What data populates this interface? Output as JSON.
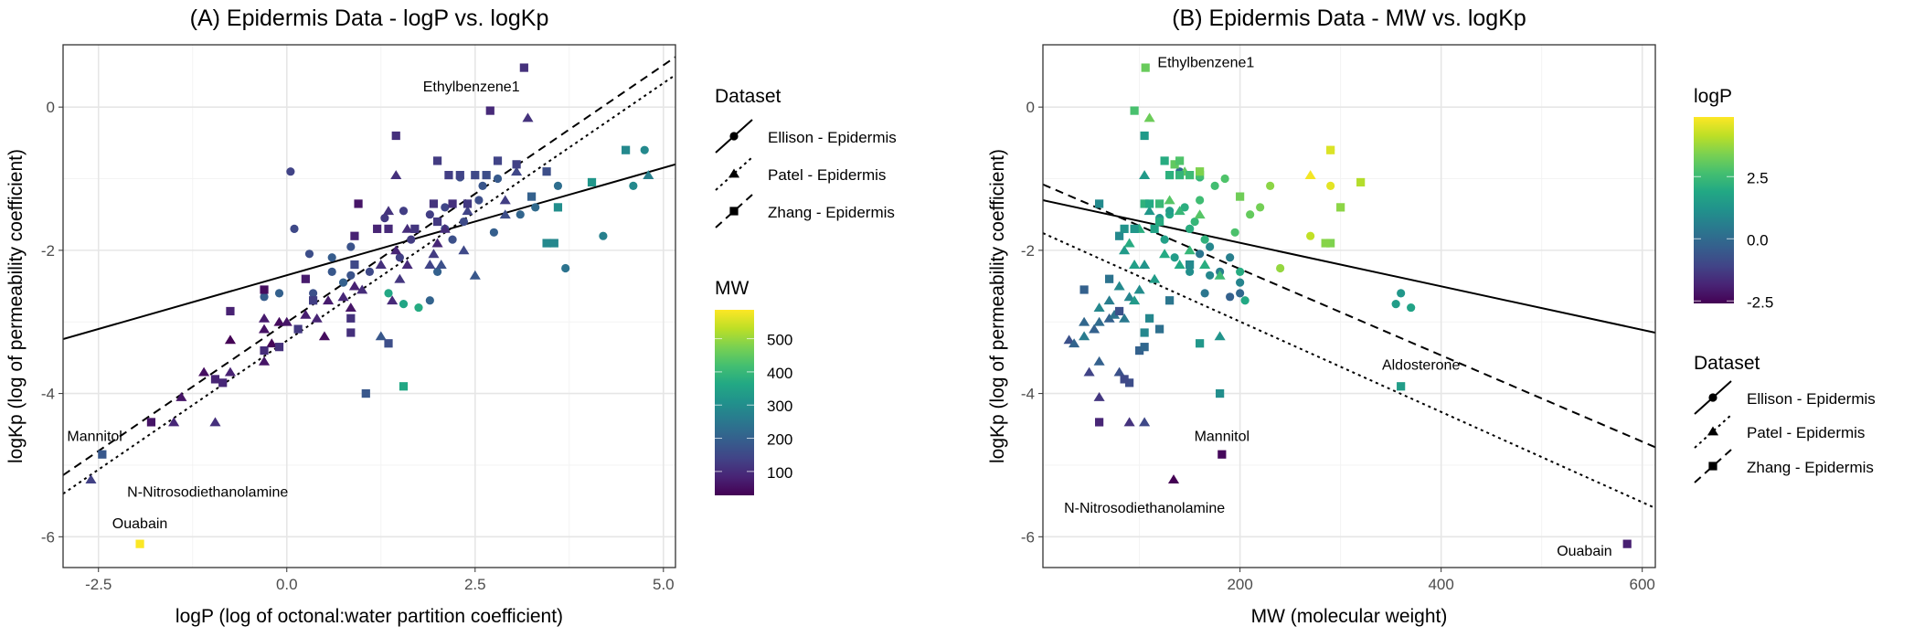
{
  "chart_data": {
    "type": "scatter",
    "datasets": [
      {
        "name": "Ellison - Epidermis",
        "shape": "circle",
        "line": "solid"
      },
      {
        "name": "Patel - Epidermis",
        "shape": "triangle",
        "line": "dotted"
      },
      {
        "name": "Zhang - Epidermis",
        "shape": "square",
        "line": "dashed"
      }
    ],
    "point_fields": [
      "logP",
      "MW",
      "logKp"
    ],
    "points": {
      "Ellison - Epidermis": [
        [
          0.05,
          140,
          -0.9
        ],
        [
          0.1,
          150,
          -1.7
        ],
        [
          0.3,
          160,
          -2.05
        ],
        [
          0.6,
          190,
          -2.1
        ],
        [
          0.85,
          170,
          -1.95
        ],
        [
          1.3,
          120,
          -1.55
        ],
        [
          1.9,
          130,
          -1.5
        ],
        [
          2.1,
          145,
          -1.4
        ],
        [
          2.3,
          160,
          -0.98
        ],
        [
          0.75,
          200,
          -2.45
        ],
        [
          1.75,
          370,
          -2.8
        ],
        [
          1.35,
          360,
          -2.6
        ],
        [
          -0.3,
          190,
          -2.65
        ],
        [
          -0.1,
          200,
          -2.6
        ],
        [
          0.85,
          170,
          -2.35
        ],
        [
          1.5,
          135,
          -2.1
        ],
        [
          2.1,
          150,
          -1.7
        ],
        [
          2.2,
          165,
          -1.85
        ],
        [
          2.6,
          175,
          -1.1
        ],
        [
          3.7,
          240,
          -2.25
        ],
        [
          4.2,
          270,
          -1.8
        ],
        [
          4.6,
          290,
          -1.1
        ],
        [
          3.1,
          210,
          -1.5
        ],
        [
          2.8,
          185,
          -1.0
        ],
        [
          2.55,
          160,
          -1.3
        ],
        [
          2.35,
          155,
          -1.6
        ],
        [
          1.55,
          130,
          -1.45
        ],
        [
          2.0,
          200,
          -2.3
        ],
        [
          1.9,
          205,
          -2.7
        ],
        [
          1.65,
          125,
          -1.85
        ],
        [
          1.1,
          150,
          -2.3
        ],
        [
          0.35,
          165,
          -2.6
        ],
        [
          3.6,
          230,
          -1.1
        ],
        [
          4.75,
          290,
          -0.6
        ],
        [
          2.75,
          195,
          -1.75
        ],
        [
          3.3,
          220,
          -1.4
        ],
        [
          1.55,
          355,
          -2.75
        ],
        [
          0.6,
          180,
          -2.3
        ]
      ],
      "Patel - Epidermis": [
        [
          -2.6,
          134,
          -5.2
        ],
        [
          -1.4,
          60,
          -4.05
        ],
        [
          -1.5,
          90,
          -4.4
        ],
        [
          -0.95,
          105,
          -4.4
        ],
        [
          -1.1,
          50,
          -3.7
        ],
        [
          -0.75,
          80,
          -3.7
        ],
        [
          -0.75,
          30,
          -3.25
        ],
        [
          -0.3,
          60,
          -3.55
        ],
        [
          -0.3,
          55,
          -3.1
        ],
        [
          -0.3,
          70,
          -2.95
        ],
        [
          -0.1,
          45,
          -3.0
        ],
        [
          0.0,
          60,
          -3.0
        ],
        [
          0.25,
          75,
          -2.9
        ],
        [
          0.4,
          85,
          -2.95
        ],
        [
          0.55,
          70,
          -2.7
        ],
        [
          0.75,
          90,
          -2.65
        ],
        [
          0.85,
          60,
          -2.8
        ],
        [
          0.9,
          80,
          -2.5
        ],
        [
          1.0,
          100,
          -2.55
        ],
        [
          0.5,
          45,
          -3.2
        ],
        [
          1.25,
          105,
          -2.2
        ],
        [
          1.5,
          115,
          -2.4
        ],
        [
          1.45,
          85,
          -2.0
        ],
        [
          1.6,
          95,
          -2.2
        ],
        [
          1.6,
          100,
          -1.7
        ],
        [
          1.35,
          110,
          -1.45
        ],
        [
          1.45,
          105,
          -0.95
        ],
        [
          1.95,
          125,
          -2.05
        ],
        [
          2.0,
          90,
          -1.9
        ],
        [
          2.1,
          100,
          -1.7
        ],
        [
          1.9,
          140,
          -2.2
        ],
        [
          2.05,
          165,
          -2.2
        ],
        [
          2.35,
          150,
          -2.0
        ],
        [
          2.5,
          180,
          -2.35
        ],
        [
          2.4,
          140,
          -1.45
        ],
        [
          2.9,
          130,
          -1.3
        ],
        [
          2.9,
          160,
          -1.5
        ],
        [
          3.2,
          110,
          -0.15
        ],
        [
          3.05,
          145,
          -0.9
        ],
        [
          4.8,
          270,
          -0.95
        ],
        [
          1.25,
          180,
          -3.2
        ],
        [
          1.4,
          95,
          -2.7
        ],
        [
          -0.2,
          35,
          -3.3
        ]
      ],
      "Zhang - Epidermis": [
        [
          3.15,
          106,
          0.55
        ],
        [
          -2.45,
          182,
          -4.85
        ],
        [
          -1.95,
          585,
          -6.1
        ],
        [
          1.55,
          360,
          -3.9
        ],
        [
          1.05,
          180,
          -4.0
        ],
        [
          1.35,
          160,
          -3.3
        ],
        [
          -1.8,
          60,
          -4.4
        ],
        [
          -0.75,
          80,
          -2.85
        ],
        [
          -0.3,
          45,
          -2.55
        ],
        [
          -0.85,
          90,
          -3.85
        ],
        [
          -0.95,
          85,
          -3.8
        ],
        [
          -0.3,
          100,
          -3.4
        ],
        [
          -0.1,
          105,
          -3.35
        ],
        [
          0.15,
          120,
          -3.1
        ],
        [
          0.35,
          130,
          -2.7
        ],
        [
          0.25,
          70,
          -2.4
        ],
        [
          0.85,
          105,
          -3.15
        ],
        [
          0.85,
          110,
          -2.95
        ],
        [
          0.9,
          150,
          -2.2
        ],
        [
          0.9,
          80,
          -1.8
        ],
        [
          0.95,
          60,
          -1.35
        ],
        [
          1.2,
          85,
          -1.7
        ],
        [
          1.35,
          95,
          -1.7
        ],
        [
          1.45,
          105,
          -0.4
        ],
        [
          1.7,
          115,
          -1.7
        ],
        [
          2.0,
          125,
          -0.75
        ],
        [
          2.15,
          130,
          -0.95
        ],
        [
          2.3,
          140,
          -0.95
        ],
        [
          2.5,
          150,
          -0.95
        ],
        [
          2.65,
          160,
          -0.95
        ],
        [
          2.2,
          105,
          -1.35
        ],
        [
          2.4,
          120,
          -1.35
        ],
        [
          2.0,
          120,
          -1.6
        ],
        [
          1.95,
          110,
          -1.35
        ],
        [
          2.7,
          95,
          -0.05
        ],
        [
          3.05,
          135,
          -0.8
        ],
        [
          3.45,
          160,
          -0.9
        ],
        [
          3.6,
          300,
          -1.4
        ],
        [
          4.5,
          290,
          -0.6
        ],
        [
          4.05,
          320,
          -1.05
        ],
        [
          3.25,
          200,
          -1.25
        ],
        [
          3.45,
          290,
          -1.9
        ],
        [
          3.55,
          285,
          -1.9
        ],
        [
          2.8,
          140,
          -0.75
        ]
      ]
    },
    "panels": [
      {
        "title": "(A) Epidermis Data - logP vs. logKp",
        "xfield": "logP",
        "yfield": "logKp",
        "colorfield": "MW",
        "xlabel": "logP (log of octonal:water partition coefficient)",
        "ylabel": "logKp (log of permeability coefficient)",
        "xlim": [
          -2.97,
          5.16
        ],
        "ylim": [
          -6.43,
          0.87
        ],
        "xticks": [
          -2.5,
          0,
          2.5,
          5
        ],
        "xtick_labels": [
          "-2.5",
          "0.0",
          "2.5",
          "5.0"
        ],
        "xminor": [
          -1.25,
          1.25,
          3.75
        ],
        "yticks": [
          0,
          -2,
          -4,
          -6
        ],
        "ytick_labels": [
          "0",
          "-2",
          "-4",
          "-6"
        ],
        "yminor": [
          -1,
          -3,
          -5
        ],
        "grid": true,
        "fit_lines": {
          "Ellison - Epidermis": [
            [
              -2.97,
              -3.24
            ],
            [
              5.16,
              -0.8
            ]
          ],
          "Patel - Epidermis": [
            [
              -2.97,
              -5.4
            ],
            [
              5.16,
              0.45
            ]
          ],
          "Zhang - Epidermis": [
            [
              -2.97,
              -5.14
            ],
            [
              5.16,
              0.7
            ]
          ]
        },
        "annotations": [
          {
            "text": "Ethylbenzene1",
            "x": 2.45,
            "y": 0.28,
            "anchor": "middle"
          },
          {
            "text": "Mannitol",
            "x": -2.55,
            "y": -4.6,
            "anchor": "middle"
          },
          {
            "text": "N-Nitrosodiethanolamine",
            "x": -1.05,
            "y": -5.38,
            "anchor": "middle"
          },
          {
            "text": "Ouabain",
            "x": -1.95,
            "y": -5.82,
            "anchor": "middle"
          }
        ],
        "colorbar": {
          "title": "MW",
          "range": [
            28,
            587
          ],
          "ticks": [
            100,
            200,
            300,
            400,
            500
          ],
          "tick_labels": [
            "100",
            "200",
            "300",
            "400",
            "500"
          ]
        },
        "legend": {
          "title": "Dataset",
          "position": "right"
        }
      },
      {
        "title": "(B) Epidermis Data - MW vs. logKp",
        "xfield": "MW",
        "yfield": "logKp",
        "colorfield": "logP",
        "xlabel": "MW (molecular weight)",
        "ylabel": "logKp (log of permeability coefficient)",
        "xlim": [
          4,
          613
        ],
        "ylim": [
          -6.43,
          0.87
        ],
        "xticks": [
          200,
          400,
          600
        ],
        "xtick_labels": [
          "200",
          "400",
          "600"
        ],
        "xminor": [
          100,
          300,
          500
        ],
        "yticks": [
          0,
          -2,
          -4,
          -6
        ],
        "ytick_labels": [
          "0",
          "-2",
          "-4",
          "-6"
        ],
        "yminor": [
          -1,
          -3,
          -5
        ],
        "grid": true,
        "fit_lines": {
          "Ellison - Epidermis": [
            [
              4,
              -1.3
            ],
            [
              613,
              -3.15
            ]
          ],
          "Patel - Epidermis": [
            [
              4,
              -1.76
            ],
            [
              613,
              -5.6
            ]
          ],
          "Zhang - Epidermis": [
            [
              4,
              -1.08
            ],
            [
              613,
              -4.75
            ]
          ]
        },
        "annotations": [
          {
            "text": "Ethylbenzene1",
            "x": 118,
            "y": 0.62,
            "anchor": "start"
          },
          {
            "text": "Aldosterone",
            "x": 380,
            "y": -3.6,
            "anchor": "middle"
          },
          {
            "text": "Mannitol",
            "x": 182,
            "y": -4.6,
            "anchor": "middle"
          },
          {
            "text": "N-Nitrosodiethanolamine",
            "x": 105,
            "y": -5.6,
            "anchor": "middle"
          },
          {
            "text": "Ouabain",
            "x": 570,
            "y": -6.2,
            "anchor": "end"
          }
        ],
        "colorbar": {
          "title": "logP",
          "range": [
            -2.6,
            4.9
          ],
          "ticks": [
            -2.5,
            0,
            2.5
          ],
          "tick_labels": [
            "-2.5",
            "0.0",
            "2.5"
          ]
        },
        "legend": {
          "title": "Dataset",
          "position": "right"
        }
      }
    ]
  }
}
